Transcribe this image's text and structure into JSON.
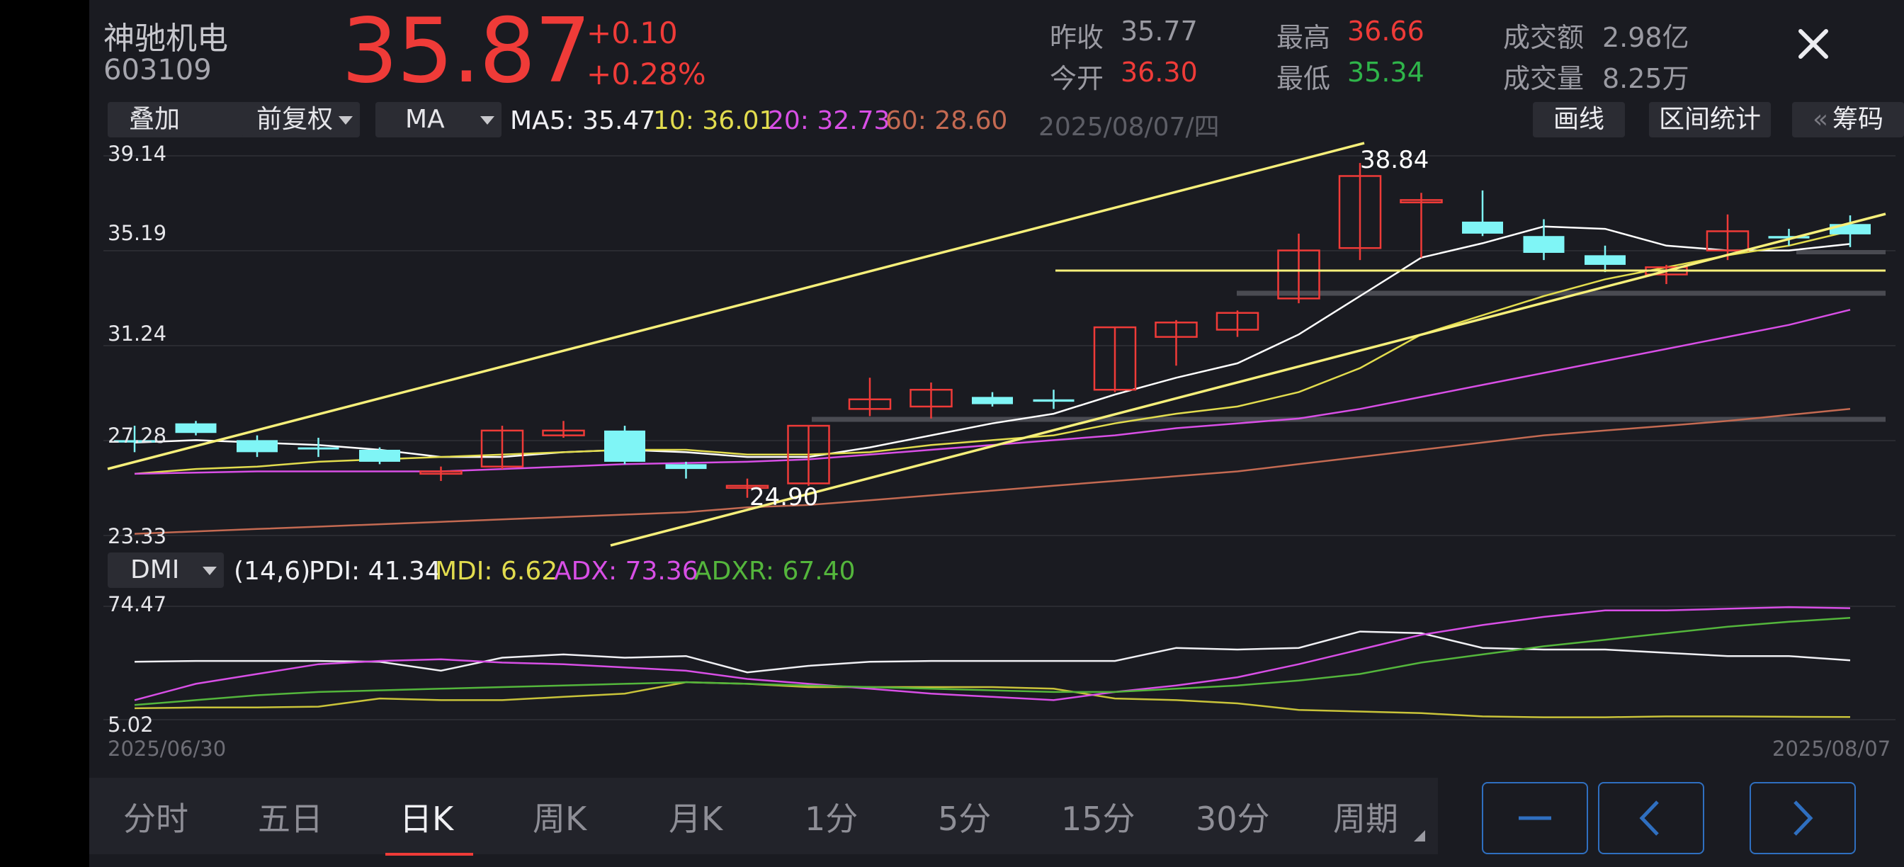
{
  "stock": {
    "name": "神驰机电",
    "code": "603109",
    "price": "35.87",
    "change": "+0.10",
    "change_pct": "+0.28%"
  },
  "quote": {
    "prev_close_label": "昨收",
    "prev_close": "35.77",
    "open_label": "今开",
    "open": "36.30",
    "high_label": "最高",
    "high": "36.66",
    "low_label": "最低",
    "low": "35.34",
    "amount_label": "成交额",
    "amount": "2.98亿",
    "volume_label": "成交量",
    "volume": "8.25万"
  },
  "toolbar": {
    "overlay": "叠加",
    "adjust": "前复权",
    "indicator": "MA",
    "ma5": "MA5: 35.47",
    "ma10": "10: 36.01",
    "ma20": "20: 32.73",
    "ma60": "60: 28.60",
    "date": "2025/08/07/四",
    "draw_line": "画线",
    "range_stats": "区间统计",
    "chips_prefix": "«",
    "chips": "筹码"
  },
  "main_chart": {
    "y_ticks": [
      "39.14",
      "35.19",
      "31.24",
      "27.28",
      "23.33"
    ],
    "high_label": "38.84",
    "low_label": "24.90"
  },
  "sub_chart": {
    "indicator": "DMI",
    "params": "(14,6)",
    "pdi": "PDI: 41.34",
    "mdi": "MDI: 6.62",
    "adx": "ADX: 73.36",
    "adxr": "ADXR: 67.40",
    "y_top": "74.47",
    "y_bottom": "5.02",
    "x_start": "2025/06/30",
    "x_end": "2025/08/07"
  },
  "tabs": [
    "分时",
    "五日",
    "日K",
    "周K",
    "月K",
    "1分",
    "5分",
    "15分",
    "30分",
    "周期"
  ],
  "active_tab": "日K",
  "colors": {
    "up": "#ef3b38",
    "down": "#7ff5f6",
    "ma5": "#ffffff",
    "ma10": "#e2dc4e",
    "ma20": "#d84fe6",
    "ma60": "#c46a52",
    "accent": "#2f6fc0"
  },
  "chart_data": {
    "type": "candlestick",
    "dates_range": [
      "2025/06/30",
      "2025/08/07"
    ],
    "ylim": [
      23.33,
      39.14
    ],
    "candles": [
      {
        "o": 27.3,
        "c": 27.2,
        "h": 27.9,
        "l": 26.8
      },
      {
        "o": 28.0,
        "c": 27.6,
        "h": 28.1,
        "l": 27.5
      },
      {
        "o": 27.3,
        "c": 26.8,
        "h": 27.5,
        "l": 26.6
      },
      {
        "o": 27.0,
        "c": 26.95,
        "h": 27.4,
        "l": 26.6
      },
      {
        "o": 26.9,
        "c": 26.4,
        "h": 27.0,
        "l": 26.3
      },
      {
        "o": 25.9,
        "c": 26.0,
        "h": 26.2,
        "l": 25.6
      },
      {
        "o": 26.2,
        "c": 27.7,
        "h": 27.9,
        "l": 26.1
      },
      {
        "o": 27.5,
        "c": 27.7,
        "h": 28.1,
        "l": 27.4
      },
      {
        "o": 27.7,
        "c": 26.4,
        "h": 27.9,
        "l": 26.3
      },
      {
        "o": 26.3,
        "c": 26.1,
        "h": 26.4,
        "l": 25.7
      },
      {
        "o": 25.4,
        "c": 25.4,
        "h": 25.7,
        "l": 24.9
      },
      {
        "o": 25.5,
        "c": 27.9,
        "h": 27.9,
        "l": 25.4
      },
      {
        "o": 28.6,
        "c": 29.0,
        "h": 29.9,
        "l": 28.3
      },
      {
        "o": 28.7,
        "c": 29.4,
        "h": 29.7,
        "l": 28.2
      },
      {
        "o": 29.1,
        "c": 28.8,
        "h": 29.3,
        "l": 28.7
      },
      {
        "o": 29.0,
        "c": 28.9,
        "h": 29.4,
        "l": 28.6
      },
      {
        "o": 29.4,
        "c": 32.0,
        "h": 32.0,
        "l": 29.3
      },
      {
        "o": 31.6,
        "c": 32.2,
        "h": 32.3,
        "l": 30.4
      },
      {
        "o": 31.9,
        "c": 32.6,
        "h": 32.7,
        "l": 31.6
      },
      {
        "o": 33.2,
        "c": 35.2,
        "h": 35.9,
        "l": 33.0
      },
      {
        "o": 35.3,
        "c": 38.3,
        "h": 38.84,
        "l": 34.8
      },
      {
        "o": 37.2,
        "c": 37.3,
        "h": 37.6,
        "l": 34.9
      },
      {
        "o": 36.4,
        "c": 35.9,
        "h": 37.7,
        "l": 35.8
      },
      {
        "o": 35.8,
        "c": 35.1,
        "h": 36.5,
        "l": 34.8
      },
      {
        "o": 35.0,
        "c": 34.6,
        "h": 35.4,
        "l": 34.3
      },
      {
        "o": 34.2,
        "c": 34.5,
        "h": 34.6,
        "l": 33.8
      },
      {
        "o": 35.2,
        "c": 36.0,
        "h": 36.7,
        "l": 34.8
      },
      {
        "o": 35.8,
        "c": 35.7,
        "h": 36.1,
        "l": 35.4
      },
      {
        "o": 36.3,
        "c": 35.87,
        "h": 36.66,
        "l": 35.34
      }
    ],
    "ma_series": [
      {
        "name": "MA5",
        "values": [
          27.2,
          27.3,
          27.2,
          27.1,
          26.9,
          26.6,
          26.6,
          26.8,
          26.9,
          26.8,
          26.6,
          26.6,
          27.0,
          27.5,
          28.0,
          28.4,
          29.2,
          29.9,
          30.5,
          31.7,
          33.3,
          34.9,
          35.5,
          36.2,
          36.1,
          35.4,
          35.2,
          35.2,
          35.47
        ]
      },
      {
        "name": "10",
        "values": [
          25.9,
          26.1,
          26.2,
          26.4,
          26.5,
          26.6,
          26.7,
          26.8,
          26.9,
          26.9,
          26.7,
          26.7,
          26.8,
          27.1,
          27.3,
          27.5,
          28.0,
          28.4,
          28.7,
          29.3,
          30.3,
          31.7,
          32.5,
          33.3,
          34.0,
          34.5,
          35.0,
          35.4,
          36.01
        ]
      },
      {
        "name": "20",
        "values": [
          25.9,
          25.95,
          26.0,
          26.0,
          26.0,
          26.0,
          26.1,
          26.2,
          26.3,
          26.35,
          26.4,
          26.5,
          26.7,
          26.9,
          27.1,
          27.3,
          27.5,
          27.8,
          28.0,
          28.2,
          28.6,
          29.1,
          29.6,
          30.1,
          30.6,
          31.1,
          31.6,
          32.1,
          32.73
        ]
      },
      {
        "name": "60",
        "values": [
          23.4,
          23.5,
          23.6,
          23.7,
          23.8,
          23.9,
          24.0,
          24.1,
          24.2,
          24.3,
          24.5,
          24.6,
          24.8,
          25.0,
          25.2,
          25.4,
          25.6,
          25.8,
          26.0,
          26.3,
          26.6,
          26.9,
          27.2,
          27.5,
          27.7,
          27.9,
          28.1,
          28.35,
          28.6
        ]
      }
    ],
    "dmi": {
      "ylim": [
        5.02,
        74.47
      ],
      "series": [
        {
          "name": "PDI",
          "values": [
            40.5,
            41,
            41,
            41,
            40.5,
            35,
            43,
            45,
            43,
            44,
            34,
            38,
            40.5,
            41,
            41,
            41,
            41,
            49,
            48,
            49,
            59,
            58,
            49,
            48,
            48,
            46,
            44,
            44,
            41.34
          ]
        },
        {
          "name": "MDI",
          "values": [
            12,
            12.5,
            12.5,
            13,
            18,
            17,
            17,
            19,
            21,
            28,
            27,
            25,
            25,
            25,
            25,
            24,
            18,
            17,
            15,
            11,
            10,
            9,
            7,
            6.5,
            6.5,
            7,
            7,
            6.8,
            6.62
          ]
        },
        {
          "name": "ADX",
          "values": [
            17,
            27,
            33,
            39,
            41,
            42,
            40,
            39,
            37,
            35,
            30,
            27,
            24,
            21,
            19,
            17,
            22,
            26,
            31,
            39,
            48,
            57,
            63,
            68,
            72,
            72,
            73,
            74,
            73.36
          ]
        },
        {
          "name": "ADXR",
          "values": [
            14,
            17,
            20,
            22,
            23,
            24,
            25,
            26,
            27,
            28,
            27,
            26,
            25,
            24,
            23,
            22,
            22,
            24,
            26,
            29,
            33,
            40,
            45,
            50,
            54,
            58,
            62,
            65,
            67.4
          ]
        }
      ]
    }
  }
}
